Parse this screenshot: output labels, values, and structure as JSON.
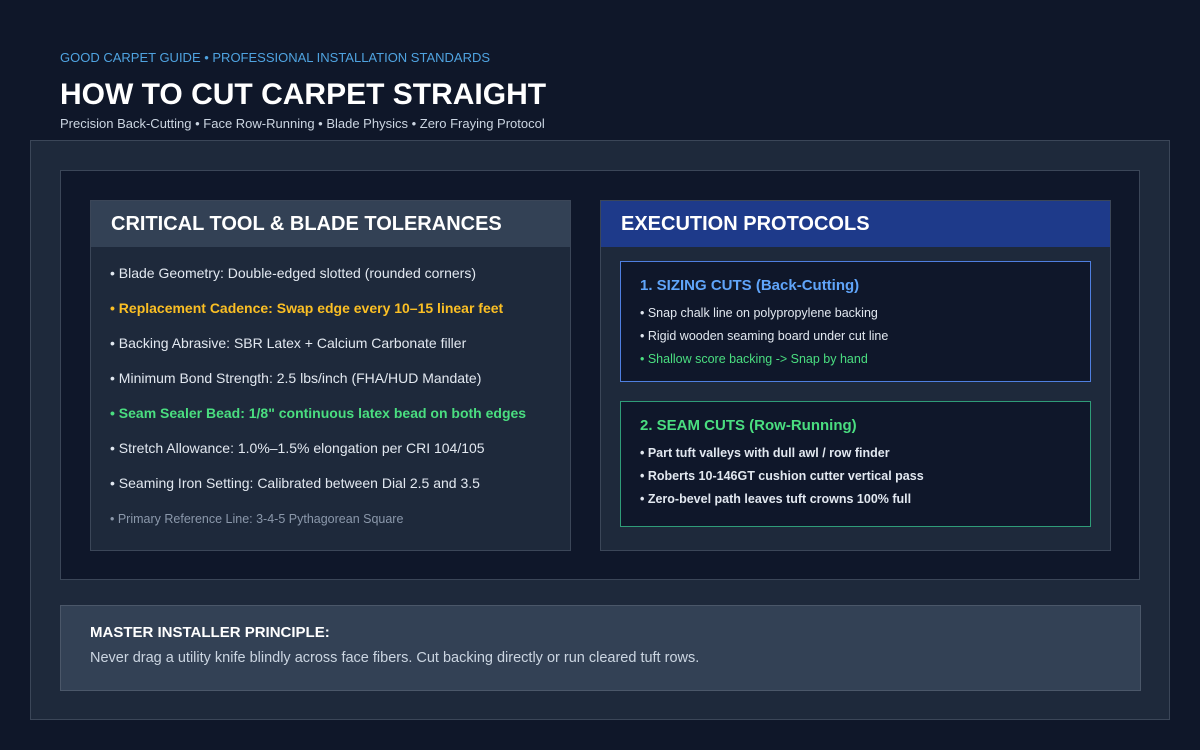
{
  "header": {
    "kicker": "GOOD CARPET GUIDE • PROFESSIONAL INSTALLATION STANDARDS",
    "title": "HOW TO CUT CARPET STRAIGHT",
    "subtitle": "Precision Back-Cutting • Face Row-Running • Blade Physics • Zero Fraying Protocol"
  },
  "tolerances": {
    "title": "CRITICAL TOOL & BLADE TOLERANCES",
    "items": [
      {
        "text": "• Blade Geometry: Double-edged slotted (rounded corners)",
        "tone": "default"
      },
      {
        "text": "• Replacement Cadence: Swap edge every 10–15 linear feet",
        "tone": "amber"
      },
      {
        "text": "• Backing Abrasive: SBR Latex + Calcium Carbonate filler",
        "tone": "default"
      },
      {
        "text": "• Minimum Bond Strength: 2.5 lbs/inch (FHA/HUD Mandate)",
        "tone": "default"
      },
      {
        "text": "• Seam Sealer Bead: 1/8\" continuous latex bead on both edges",
        "tone": "green"
      },
      {
        "text": "• Stretch Allowance: 1.0%–1.5% elongation per CRI 104/105",
        "tone": "default"
      },
      {
        "text": "• Seaming Iron Setting: Calibrated between Dial 2.5 and 3.5",
        "tone": "default"
      },
      {
        "text": "• Primary Reference Line: 3-4-5 Pythagorean Square",
        "tone": "muted"
      }
    ]
  },
  "protocols": {
    "title": "EXECUTION PROTOCOLS",
    "sections": [
      {
        "title": "1. SIZING CUTS (Back-Cutting)",
        "accent": "blue",
        "items": [
          {
            "text": "• Snap chalk line on polypropylene backing",
            "tone": "default"
          },
          {
            "text": "• Rigid wooden seaming board under cut line",
            "tone": "default"
          },
          {
            "text": "• Shallow score backing -> Snap by hand",
            "tone": "green"
          }
        ]
      },
      {
        "title": "2. SEAM CUTS (Row-Running)",
        "accent": "green",
        "items": [
          {
            "text": "• Part tuft valleys with dull awl / row finder",
            "tone": "default"
          },
          {
            "text": "• Roberts 10-146GT cushion cutter vertical pass",
            "tone": "default"
          },
          {
            "text": "• Zero-bevel path leaves tuft crowns 100% full",
            "tone": "default"
          }
        ]
      }
    ]
  },
  "principle": {
    "title": "MASTER INSTALLER PRINCIPLE:",
    "text": "Never drag a utility knife blindly across face fibers. Cut backing directly or run cleared tuft rows."
  }
}
